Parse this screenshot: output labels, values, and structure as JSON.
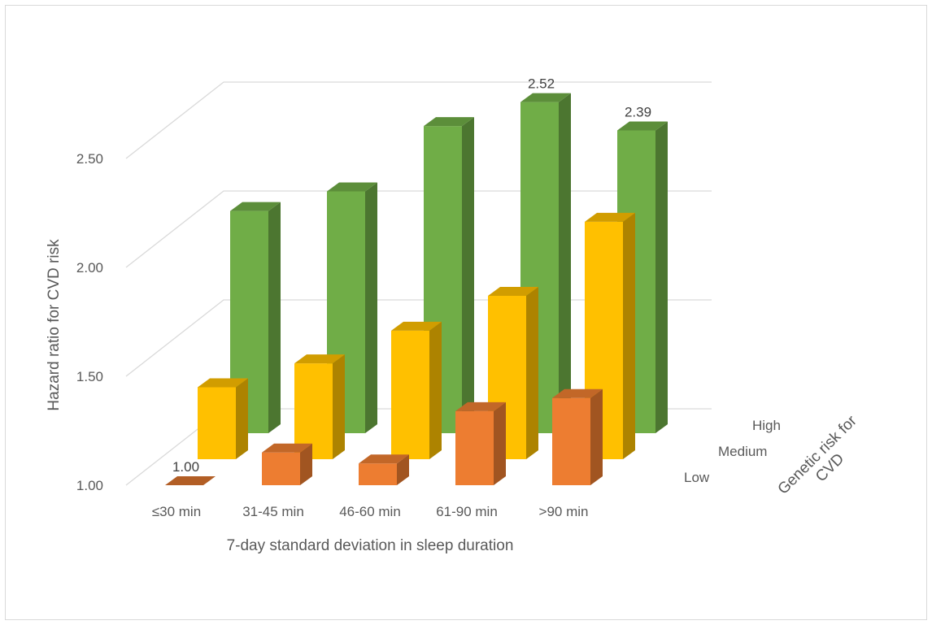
{
  "chart_data": {
    "type": "bar",
    "subtype": "3d-clustered-columns",
    "title": "",
    "xlabel": "7-day standard deviation in sleep duration",
    "ylabel": "Hazard ratio for CVD risk",
    "zlabel": "Genetic risk for CVD",
    "categories": [
      "≤30 min",
      "31-45 min",
      "46-60 min",
      "61-90 min",
      ">90 min"
    ],
    "series": [
      {
        "name": "Low",
        "values": [
          1.0,
          1.15,
          1.1,
          1.34,
          1.4
        ],
        "color": "#ED7D31"
      },
      {
        "name": "Medium",
        "values": [
          1.33,
          1.44,
          1.59,
          1.75,
          2.09
        ],
        "color": "#FFC000"
      },
      {
        "name": "High",
        "values": [
          2.02,
          2.11,
          2.41,
          2.52,
          2.39
        ],
        "color": "#70AD47"
      }
    ],
    "data_labels": [
      {
        "series": "Low",
        "category": "≤30 min",
        "text": "1.00"
      },
      {
        "series": "High",
        "category": "61-90 min",
        "text": "2.52"
      },
      {
        "series": "High",
        "category": ">90 min",
        "text": "2.39"
      }
    ],
    "yticks": [
      "1.00",
      "1.50",
      "2.00",
      "2.50"
    ],
    "ylim": [
      1.0,
      2.8
    ],
    "grid": true,
    "legend": "none"
  }
}
